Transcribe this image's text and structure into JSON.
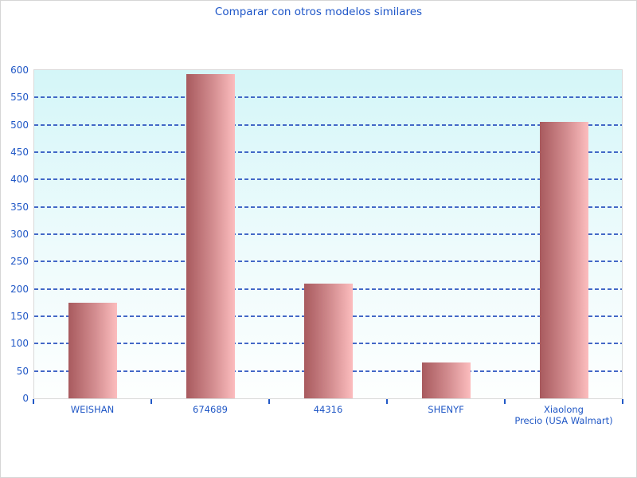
{
  "page": {
    "title": "Comparar con otros modelos similares"
  },
  "chart_data": {
    "type": "bar",
    "title": "Comparar con otros modelos similares",
    "categories": [
      "WEISHAN",
      "674689",
      "44316",
      "SHENYF",
      "Xiaolong\nPrecio (USA Walmart)"
    ],
    "values": [
      175,
      593,
      210,
      65,
      505
    ],
    "xlabel": "",
    "ylabel": "",
    "ylim": [
      0,
      600
    ],
    "yticks": [
      0,
      50,
      100,
      150,
      200,
      250,
      300,
      350,
      400,
      450,
      500,
      550,
      600
    ],
    "grid": "horizontal-dashed",
    "legend": "none",
    "colors": {
      "title_text": "#1e56c8",
      "tick_label_text": "#2158c6",
      "gridline": "#3a60c4",
      "bar_gradient_left": "#a85a5e",
      "bar_gradient_right": "#fcbdbe",
      "plot_bg_top": "#d4f6f8",
      "plot_bg_bottom": "#fdfffe",
      "plot_border": "#d9d9d9",
      "axis_tick": "#2158c6"
    }
  }
}
